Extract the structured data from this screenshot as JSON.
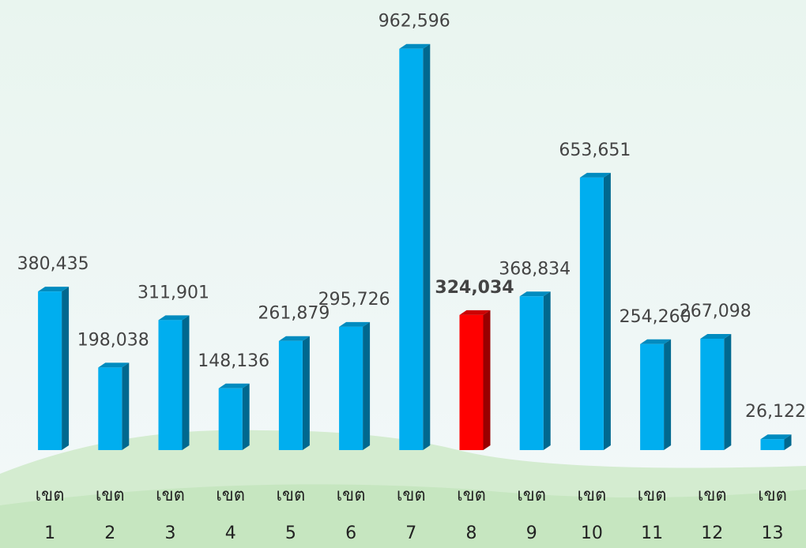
{
  "chart_data": {
    "type": "bar",
    "categories": [
      "เขต 1",
      "เขต 2",
      "เขต 3",
      "เขต 4",
      "เขต 5",
      "เขต 6",
      "เขต 7",
      "เขต 8",
      "เขต 9",
      "เขต 10",
      "เขต 11",
      "เขต 12",
      "เขต 13"
    ],
    "values": [
      380435,
      198038,
      311901,
      148136,
      261879,
      295726,
      962596,
      324034,
      368834,
      653651,
      254260,
      267098,
      26122
    ],
    "value_labels": [
      "380,435",
      "198,038",
      "311,901",
      "148,136",
      "261,879",
      "295,726",
      "962,596",
      "324,034",
      "368,834",
      "653,651",
      "254,260",
      "267,098",
      "26,122"
    ],
    "colors": [
      "#00aeef",
      "#00aeef",
      "#00aeef",
      "#00aeef",
      "#00aeef",
      "#00aeef",
      "#00aeef",
      "#ff0000",
      "#00aeef",
      "#00aeef",
      "#00aeef",
      "#00aeef",
      "#00aeef"
    ],
    "ylim": [
      0,
      1000000
    ]
  }
}
